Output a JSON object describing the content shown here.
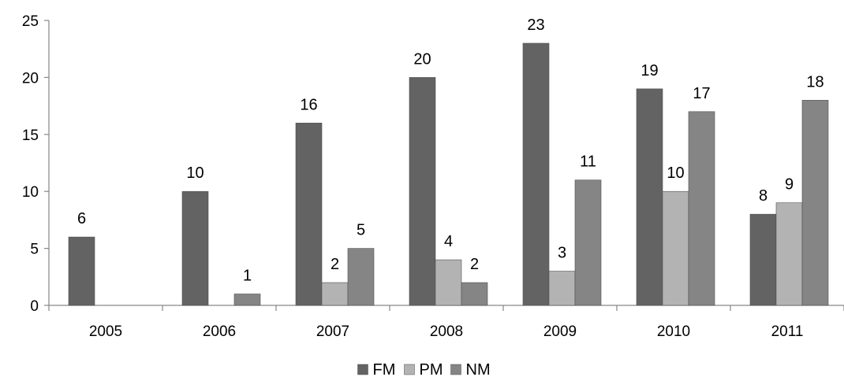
{
  "chart_data": {
    "type": "bar",
    "categories": [
      "2005",
      "2006",
      "2007",
      "2008",
      "2009",
      "2010",
      "2011"
    ],
    "series": [
      {
        "name": "FM",
        "color": "#636363",
        "values": [
          6,
          10,
          16,
          20,
          23,
          19,
          8
        ]
      },
      {
        "name": "PM",
        "color": "#b3b3b3",
        "values": [
          null,
          null,
          2,
          4,
          3,
          10,
          9
        ]
      },
      {
        "name": "NM",
        "color": "#858585",
        "values": [
          null,
          1,
          5,
          2,
          11,
          17,
          18
        ]
      }
    ],
    "ylim": [
      0,
      25
    ],
    "yticks": [
      0,
      5,
      10,
      15,
      20,
      25
    ],
    "data_labels": true,
    "grid": false,
    "legend_position": "bottom-center"
  }
}
